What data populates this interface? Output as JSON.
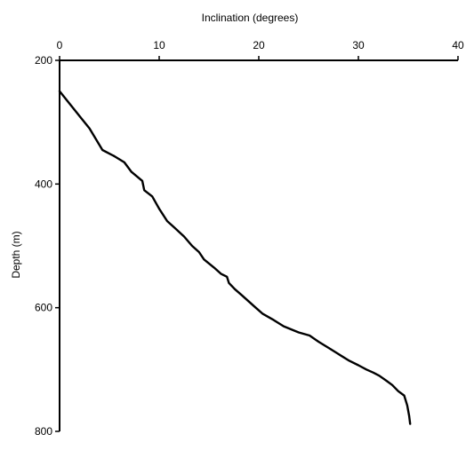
{
  "chart_data": {
    "type": "line",
    "title": "",
    "xlabel": "Inclination (degrees)",
    "ylabel": "Depth (m)",
    "xlim": [
      0,
      40
    ],
    "ylim": [
      200,
      800
    ],
    "y_inverted": true,
    "x_axis_position": "top",
    "grid": false,
    "xticks": [
      0,
      10,
      20,
      30,
      40
    ],
    "yticks": [
      200,
      400,
      600,
      800
    ],
    "xtick_labels": [
      "0",
      "10",
      "20",
      "30",
      "40"
    ],
    "ytick_labels": [
      "200",
      "400",
      "600",
      "800"
    ],
    "line_color": "#000000",
    "series": [
      {
        "x": [
          0,
          1,
          2,
          3,
          4.3,
          5.5,
          6.5,
          7.2,
          8.3,
          8.5,
          9.3,
          10,
          10.8,
          11.5,
          12.5,
          13.3,
          14,
          14.5,
          15.5,
          16.2,
          16.8,
          17,
          17.6,
          18.3,
          19,
          19.7,
          20.4,
          21.5,
          22.5,
          24,
          25.1,
          26,
          27,
          28,
          29,
          30,
          30.8,
          31.5,
          32.1,
          32.8,
          33.4,
          34,
          34.6,
          34.9,
          35.1,
          35.2
        ],
        "y": [
          250,
          270,
          290,
          310,
          345,
          355,
          365,
          380,
          395,
          410,
          420,
          440,
          460,
          470,
          485,
          500,
          510,
          522,
          535,
          545,
          550,
          560,
          570,
          580,
          590,
          600,
          610,
          620,
          630,
          640,
          645,
          655,
          665,
          675,
          685,
          693,
          700,
          705,
          710,
          718,
          725,
          735,
          742,
          758,
          775,
          788
        ]
      }
    ]
  }
}
